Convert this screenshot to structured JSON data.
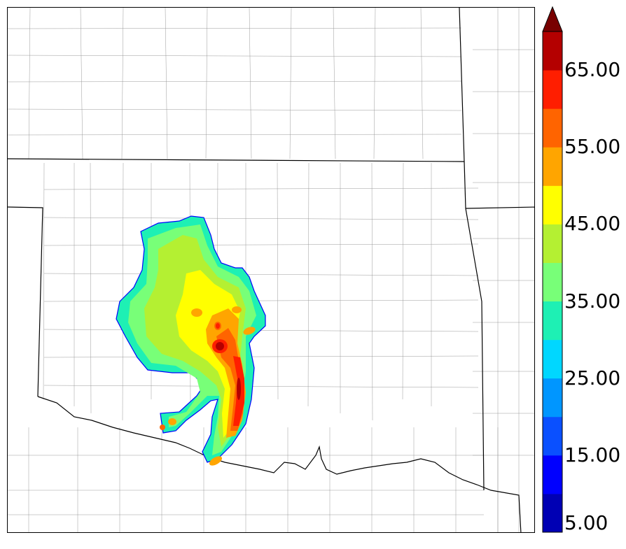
{
  "colorbar": {
    "levels": [
      5,
      10,
      15,
      20,
      25,
      30,
      35,
      40,
      45,
      50,
      55,
      60,
      65,
      70
    ],
    "labels": [
      "5.00",
      "15.00",
      "25.00",
      "35.00",
      "45.00",
      "55.00",
      "65.00"
    ],
    "colors": [
      "#0000b4",
      "#0000ff",
      "#0a50ff",
      "#0096ff",
      "#00d7ff",
      "#1ef0b4",
      "#78ff78",
      "#b4f032",
      "#ffff00",
      "#ffa500",
      "#ff6400",
      "#ff1e00",
      "#b40000",
      "#780000"
    ],
    "extend": "max"
  },
  "map": {
    "boundary_color": "#000000",
    "county_color": "#999999",
    "field_colors": {
      "outline": "#0000ff",
      "c30": "#1ef0b4",
      "c35": "#78ff78",
      "c40": "#b4f032",
      "c45": "#ffff00",
      "c50": "#ffa500",
      "c55": "#ff6400",
      "c60": "#ff1e00",
      "c65": "#b40000"
    }
  }
}
